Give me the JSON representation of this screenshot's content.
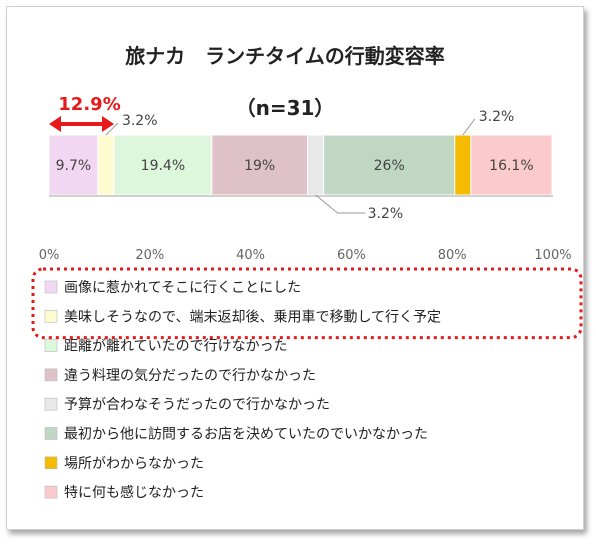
{
  "chart_data": {
    "type": "bar",
    "stacked": "100%",
    "orientation": "horizontal",
    "title": "旅ナカ　ランチタイムの行動変容率",
    "subtitle": "（n=31）",
    "xlim": [
      0,
      100
    ],
    "xticks": [
      "0%",
      "20%",
      "40%",
      "60%",
      "80%",
      "100%"
    ],
    "series": [
      {
        "name": "画像に惹かれてそこに行くことにした",
        "value": 9.7,
        "label": "9.7%",
        "color": "#f2d7f2"
      },
      {
        "name": "美味しそうなので、端末返却後、乗用車で移動して行く予定",
        "value": 3.2,
        "label": "3.2%",
        "color": "#fffbd1"
      },
      {
        "name": "距離が離れていたので行けなかった",
        "value": 19.4,
        "label": "19.4%",
        "color": "#dcf7dc"
      },
      {
        "name": "違う料理の気分だったので行かなかった",
        "value": 19,
        "label": "19%",
        "color": "#dfc2c8"
      },
      {
        "name": "予算が合わなそうだったので行かなかった",
        "value": 3.2,
        "label": "3.2%",
        "color": "#e8e8e8"
      },
      {
        "name": "最初から他に訪問するお店を決めていたのでいかなかった",
        "value": 26,
        "label": "26%",
        "color": "#c0d7c4"
      },
      {
        "name": "場所がわからなかった",
        "value": 3.2,
        "label": "3.2%",
        "color": "#f5bb00"
      },
      {
        "name": "特に何も感じなかった",
        "value": 16.1,
        "label": "16.1%",
        "color": "#fbcaca"
      }
    ],
    "annotation": {
      "text": "12.9%",
      "color": "#e8191a"
    },
    "highlight_color": "#e8191a",
    "legend_position": "bottom"
  }
}
